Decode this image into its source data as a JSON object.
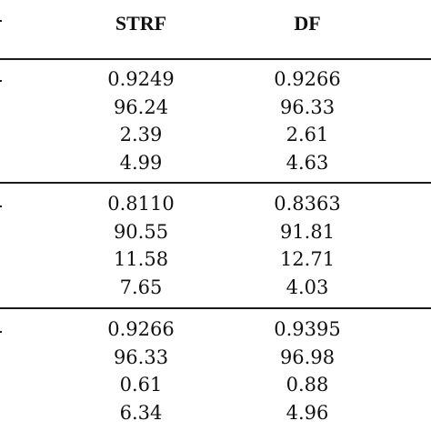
{
  "table": {
    "columns": [
      "STRF",
      "DF"
    ],
    "groups": [
      {
        "rows": [
          [
            "0.9249",
            "0.9266"
          ],
          [
            "96.24",
            "96.33"
          ],
          [
            "2.39",
            "2.61"
          ],
          [
            "4.99",
            "4.63"
          ]
        ]
      },
      {
        "rows": [
          [
            "0.8110",
            "0.8363"
          ],
          [
            "90.55",
            "91.81"
          ],
          [
            "11.58",
            "12.71"
          ],
          [
            "7.65",
            "4.03"
          ]
        ]
      },
      {
        "rows": [
          [
            "0.9266",
            "0.9395"
          ],
          [
            "96.33",
            "96.98"
          ],
          [
            "0.61",
            "0.88"
          ],
          [
            "6.34",
            "4.96"
          ]
        ]
      }
    ]
  }
}
